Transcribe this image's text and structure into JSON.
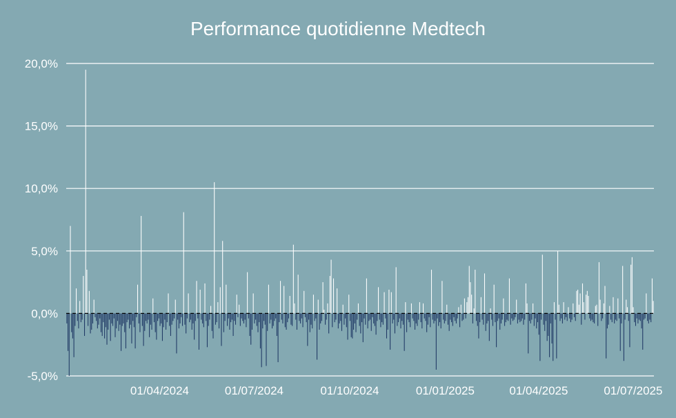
{
  "chart_data": {
    "type": "bar",
    "title": "Performance quotidienne Medtech",
    "xlabel": "",
    "ylabel": "",
    "ylim": [
      -5.0,
      20.0
    ],
    "yticks": [
      {
        "value": 20,
        "label": "20,0%"
      },
      {
        "value": 15,
        "label": "15,0%"
      },
      {
        "value": 10,
        "label": "10,0%"
      },
      {
        "value": 5,
        "label": "5,0%"
      },
      {
        "value": 0,
        "label": "0,0%"
      },
      {
        "value": -5,
        "label": "-5,0%"
      }
    ],
    "xticks": [
      {
        "date": "2024-04-01",
        "label": "01/04/2024"
      },
      {
        "date": "2024-07-01",
        "label": "01/07/2024"
      },
      {
        "date": "2024-10-01",
        "label": "01/10/2024"
      },
      {
        "date": "2025-01-01",
        "label": "01/01/2025"
      },
      {
        "date": "2025-04-01",
        "label": "01/04/2025"
      },
      {
        "date": "2025-07-01",
        "label": "01/07/2025"
      }
    ],
    "x_start": "2024-01-02",
    "x_end": "2025-07-21",
    "grid": true,
    "colors": {
      "positive": "#ffffff",
      "negative": "#1f3864",
      "background": "#84a9b2"
    },
    "series": [
      {
        "values": [
          -0.8,
          -3.0,
          -5.0,
          7.0,
          -1.5,
          -2.0,
          -3.5,
          -1.0,
          2.0,
          -0.6,
          -1.2,
          1.0,
          -0.7,
          -0.5,
          3.0,
          -1.8,
          19.5,
          3.5,
          -1.0,
          1.8,
          -1.6,
          -1.3,
          -0.8,
          1.1,
          -0.3,
          -0.6,
          -1.2,
          -0.9,
          -0.4,
          -1.5,
          -1.8,
          -0.7,
          -2.0,
          -1.1,
          -2.5,
          -1.3,
          -0.5,
          -2.2,
          -0.8,
          -1.0,
          -0.4,
          -1.9,
          -1.2,
          -0.6,
          -1.4,
          -0.9,
          -3.0,
          -1.0,
          -0.8,
          -1.5,
          -2.8,
          -0.7,
          -0.5,
          -1.2,
          -0.9,
          -2.4,
          -0.6,
          -1.1,
          -2.8,
          -0.3,
          2.3,
          -0.8,
          -1.5,
          7.8,
          -1.0,
          -2.6,
          -1.4,
          -0.6,
          -0.8,
          -0.5,
          -1.9,
          -0.9,
          -1.3,
          1.2,
          -0.7,
          -1.5,
          -2.1,
          -0.6,
          -0.4,
          -1.0,
          -0.8,
          -2.2,
          -1.1,
          -0.5,
          -1.3,
          -0.7,
          1.6,
          -1.0,
          -1.8,
          -0.9,
          -0.6,
          -0.4,
          1.1,
          -3.2,
          -0.5,
          -1.2,
          -0.8,
          -0.3,
          -1.0,
          8.1,
          -0.9,
          -1.6,
          -0.4,
          1.6,
          -0.7,
          -0.5,
          -1.3,
          -0.8,
          -2.1,
          -0.6,
          2.6,
          -0.4,
          -2.9,
          1.9,
          -0.5,
          -0.8,
          -1.1,
          2.4,
          -0.6,
          -2.7,
          -1.0,
          -0.5,
          0.6,
          -1.4,
          -2.0,
          10.5,
          -0.9,
          -0.7,
          0.9,
          -1.2,
          2.1,
          -2.6,
          5.8,
          -1.5,
          -0.6,
          2.3,
          -1.0,
          -0.4,
          -1.3,
          -0.7,
          -0.5,
          -1.8,
          -0.6,
          -0.9,
          1.5,
          -0.3,
          0.7,
          -1.0,
          -0.4,
          -0.6,
          -0.8,
          -0.5,
          -1.1,
          3.3,
          -0.4,
          -1.8,
          -2.5,
          -1.3,
          1.6,
          -0.8,
          -0.5,
          -1.0,
          -1.5,
          -0.7,
          -2.8,
          -4.3,
          -1.2,
          -0.6,
          -0.9,
          -4.2,
          -1.4,
          2.3,
          -0.8,
          -0.5,
          -1.2,
          -1.0,
          -0.6,
          -0.4,
          -1.8,
          -3.9,
          -0.7,
          2.6,
          -0.5,
          -0.8,
          2.2,
          -1.1,
          -1.3,
          -0.7,
          -0.4,
          1.4,
          -0.9,
          -1.0,
          5.5,
          0.8,
          -0.5,
          -1.3,
          3.1,
          -0.6,
          -0.8,
          -0.4,
          -1.1,
          1.8,
          -0.3,
          -0.7,
          -2.6,
          -0.5,
          -1.5,
          -0.9,
          -1.2,
          1.5,
          -0.6,
          -0.4,
          -3.7,
          1.1,
          -1.3,
          -0.8,
          -0.6,
          2.5,
          0.3,
          -0.9,
          -0.5,
          0.8,
          -1.6,
          3.0,
          4.3,
          -1.1,
          2.8,
          -0.7,
          -0.5,
          2.0,
          -1.2,
          -0.8,
          -0.6,
          -1.4,
          0.7,
          -0.9,
          -0.4,
          -1.1,
          -2.1,
          1.5,
          -0.6,
          -1.9,
          -2.0,
          -1.3,
          -0.8,
          -1.5,
          -0.5,
          0.8,
          -1.0,
          -1.6,
          -0.7,
          -2.3,
          -0.4,
          -0.9,
          2.8,
          -1.2,
          -0.6,
          -0.5,
          -1.4,
          -0.3,
          -0.8,
          -1.0,
          -1.7,
          -0.6,
          2.1,
          -0.5,
          -1.1,
          -0.7,
          -0.9,
          1.7,
          -0.4,
          -2.0,
          -1.3,
          1.9,
          -2.9,
          1.7,
          -0.8,
          -0.5,
          -1.6,
          3.7,
          -1.0,
          -0.7,
          -0.4,
          -1.2,
          -0.6,
          -0.9,
          -3.0,
          0.9,
          -1.5,
          -0.5,
          -0.7,
          -1.1,
          0.8,
          -0.4,
          -0.6,
          -1.3,
          -0.8,
          -1.0,
          -0.5,
          0.9,
          -0.7,
          -1.2,
          0.8,
          -0.4,
          -0.6,
          -1.5,
          -0.9,
          -0.3,
          -1.1,
          3.5,
          -0.5,
          -0.8,
          -0.6,
          -4.5,
          -0.4,
          -1.0,
          -0.7,
          -1.2,
          2.6,
          -0.5,
          -0.8,
          -0.6,
          0.7,
          -0.9,
          -1.4,
          -0.5,
          -0.7,
          -1.0,
          -0.3,
          -0.6,
          -0.8,
          -0.4,
          0.5,
          -1.1,
          0.7,
          -0.6,
          -0.5,
          1.2,
          -0.4,
          0.9,
          1.3,
          3.8,
          2.5,
          1.5,
          -0.8,
          0.4,
          3.5,
          -0.6,
          -1.0,
          -2.0,
          -0.7,
          1.3,
          -0.5,
          -0.9,
          3.2,
          -1.4,
          -0.8,
          -0.6,
          -2.2,
          0.4,
          -0.5,
          -1.0,
          2.3,
          -0.7,
          -2.7,
          -0.6,
          -0.4,
          -1.3,
          -0.8,
          -0.5,
          1.2,
          -1.0,
          -0.7,
          -0.5,
          -0.6,
          2.8,
          -0.9,
          -0.4,
          -0.6,
          -0.5,
          -0.3,
          1.1,
          -0.8,
          -0.5,
          -0.7,
          -0.6,
          -0.4,
          -0.9,
          -0.5,
          2.4,
          0.8,
          -3.2,
          -0.6,
          -0.8,
          -0.5,
          0.8,
          -1.0,
          -0.4,
          -1.2,
          -0.7,
          -1.7,
          -3.8,
          -0.5,
          4.7,
          -0.9,
          -1.4,
          -0.6,
          -2.2,
          -1.8,
          -3.5,
          -0.8,
          -2.4,
          -3.8,
          0.9,
          -0.5,
          -3.6,
          5.0,
          0.7,
          -0.6,
          -0.4,
          -0.8,
          0.9,
          -0.5,
          -0.3,
          -0.6,
          0.5,
          -0.4,
          -0.7,
          -0.5,
          0.8,
          -0.3,
          -0.6,
          1.8,
          1.9,
          0.7,
          1.6,
          -0.9,
          2.4,
          0.9,
          -0.5,
          1.5,
          1.8,
          1.4,
          -0.4,
          -0.6,
          -0.5,
          -0.7,
          -0.8,
          0.6,
          0.7,
          -1.0,
          4.1,
          1.1,
          -0.6,
          -0.4,
          0.8,
          2.2,
          -3.6,
          -1.2,
          -0.9,
          0.6,
          -0.5,
          -0.7,
          1.3,
          -0.8,
          -0.5,
          -0.6,
          1.2,
          -0.4,
          -3.0,
          -0.8,
          3.8,
          -3.8,
          -0.5,
          1.1,
          0.5,
          -0.6,
          -2.7,
          3.9,
          4.5,
          0.5,
          -0.7,
          -1.0,
          -0.4,
          -0.8,
          -0.5,
          -0.6,
          -1.2,
          -2.9,
          -0.5,
          -0.4,
          1.6,
          -0.6,
          -0.8,
          -0.5,
          -0.7,
          2.8,
          1.0
        ]
      }
    ]
  }
}
